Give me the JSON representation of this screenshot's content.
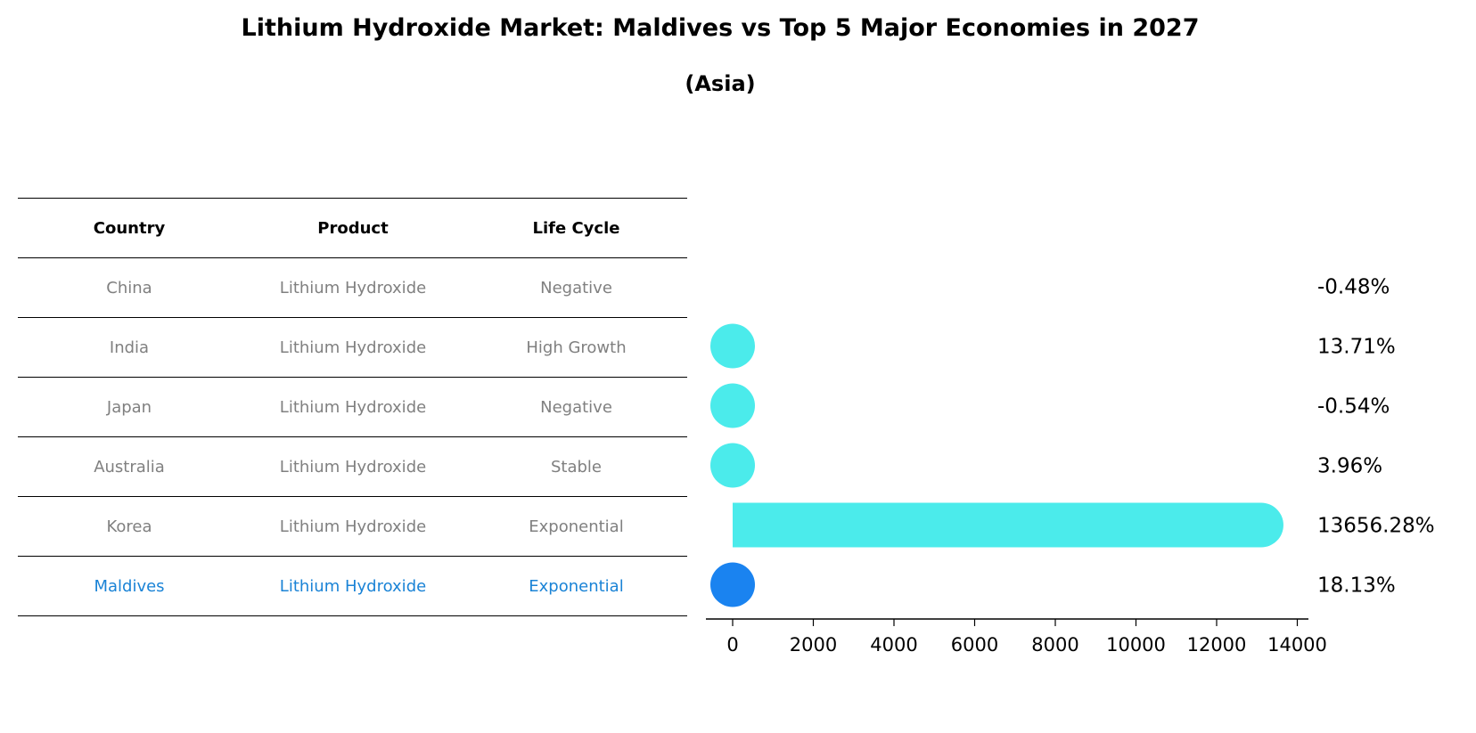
{
  "title": "Lithium Hydroxide Market: Maldives vs Top 5 Major Economies in 2027",
  "subtitle": "(Asia)",
  "table": {
    "headers": [
      "Country",
      "Product",
      "Life Cycle"
    ],
    "rows": [
      {
        "country": "China",
        "product": "Lithium Hydroxide",
        "life_cycle": "Negative"
      },
      {
        "country": "India",
        "product": "Lithium Hydroxide",
        "life_cycle": "High Growth"
      },
      {
        "country": "Japan",
        "product": "Lithium Hydroxide",
        "life_cycle": "Negative"
      },
      {
        "country": "Australia",
        "product": "Lithium Hydroxide",
        "life_cycle": "Stable"
      },
      {
        "country": "Korea",
        "product": "Lithium Hydroxide",
        "life_cycle": "Exponential"
      },
      {
        "country": "Maldives",
        "product": "Lithium Hydroxide",
        "life_cycle": "Exponential"
      }
    ]
  },
  "colors": {
    "bar": "#4bebeb",
    "highlight": "#1a83f0",
    "highlight_text": "#1a83d6",
    "muted_text": "#808080"
  },
  "chart_data": {
    "type": "bar",
    "orientation": "horizontal",
    "categories": [
      "China",
      "India",
      "Japan",
      "Australia",
      "Korea",
      "Maldives"
    ],
    "values": [
      -0.48,
      13.71,
      -0.54,
      3.96,
      13656.28,
      18.13
    ],
    "labels": [
      "-0.48%",
      "13.71%",
      "-0.54%",
      "3.96%",
      "13656.28%",
      "18.13%"
    ],
    "highlight": "Maldives",
    "xlim": [
      -700,
      14300
    ],
    "xticks": [
      0,
      2000,
      4000,
      6000,
      8000,
      10000,
      12000,
      14000
    ],
    "xlabel": "",
    "ylabel": ""
  }
}
